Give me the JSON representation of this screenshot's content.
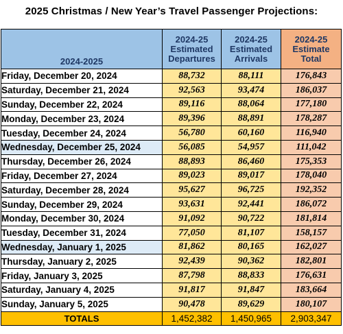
{
  "title": "2025 Christmas / New Year’s Travel Passenger Projections:",
  "columns": {
    "date": "2024-2025",
    "departures": "2024-25\nEstimated\nDepartures",
    "arrivals": "2024-25\nEstimated\nArrivals",
    "total": "2024-25\nEstimate\nTotal"
  },
  "rows": [
    {
      "date": "Friday, December 20, 2024",
      "departures": "88,732",
      "arrivals": "88,111",
      "total": "176,843",
      "highlight": false
    },
    {
      "date": "Saturday, December 21, 2024",
      "departures": "92,563",
      "arrivals": "93,474",
      "total": "186,037",
      "highlight": false
    },
    {
      "date": "Sunday, December 22, 2024",
      "departures": "89,116",
      "arrivals": "88,064",
      "total": "177,180",
      "highlight": false
    },
    {
      "date": "Monday, December 23, 2024",
      "departures": "89,396",
      "arrivals": "88,891",
      "total": "178,287",
      "highlight": false
    },
    {
      "date": "Tuesday, December 24, 2024",
      "departures": "56,780",
      "arrivals": "60,160",
      "total": "116,940",
      "highlight": false
    },
    {
      "date": "Wednesday, December 25, 2024",
      "departures": "56,085",
      "arrivals": "54,957",
      "total": "111,042",
      "highlight": true
    },
    {
      "date": "Thursday, December 26, 2024",
      "departures": "88,893",
      "arrivals": "86,460",
      "total": "175,353",
      "highlight": false
    },
    {
      "date": "Friday, December 27, 2024",
      "departures": "89,023",
      "arrivals": "89,017",
      "total": "178,040",
      "highlight": false
    },
    {
      "date": "Saturday, December 28, 2024",
      "departures": "95,627",
      "arrivals": "96,725",
      "total": "192,352",
      "highlight": false
    },
    {
      "date": "Sunday, December 29, 2024",
      "departures": "93,631",
      "arrivals": "92,441",
      "total": "186,072",
      "highlight": false
    },
    {
      "date": "Monday, December 30, 2024",
      "departures": "91,092",
      "arrivals": "90,722",
      "total": "181,814",
      "highlight": false
    },
    {
      "date": "Tuesday, December 31, 2024",
      "departures": "77,050",
      "arrivals": "81,107",
      "total": "158,157",
      "highlight": false
    },
    {
      "date": "Wednesday, January 1, 2025",
      "departures": "81,862",
      "arrivals": "80,165",
      "total": "162,027",
      "highlight": true
    },
    {
      "date": "Thursday, January 2, 2025",
      "departures": "92,439",
      "arrivals": "90,362",
      "total": "182,801",
      "highlight": false
    },
    {
      "date": "Friday, January 3, 2025",
      "departures": "87,798",
      "arrivals": "88,833",
      "total": "176,631",
      "highlight": false
    },
    {
      "date": "Saturday, January 4, 2025",
      "departures": "91,817",
      "arrivals": "91,847",
      "total": "183,664",
      "highlight": false
    },
    {
      "date": "Sunday, January 5, 2025",
      "departures": "90,478",
      "arrivals": "89,629",
      "total": "180,107",
      "highlight": false
    }
  ],
  "totals": {
    "label": "TOTALS",
    "departures": "1,452,382",
    "arrivals": "1,450,965",
    "total": "2,903,347"
  },
  "colors": {
    "header_blue": "#9dc3e6",
    "header_orange": "#f4b183",
    "cell_yellow": "#ffe699",
    "cell_peach": "#f8cbad",
    "holiday_row": "#ddebf7",
    "totals_row": "#ffc000"
  }
}
